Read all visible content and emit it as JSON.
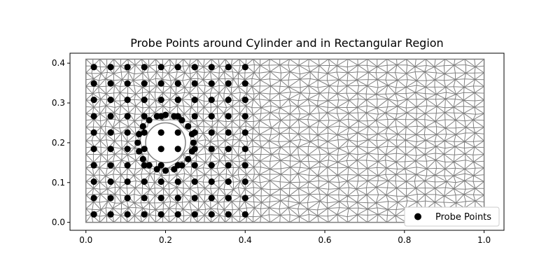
{
  "chart_data": {
    "type": "scatter",
    "title": "Probe Points around Cylinder and in Rectangular Region",
    "xlabel": "",
    "ylabel": "",
    "xlim": [
      -0.04,
      1.05
    ],
    "ylim": [
      -0.02,
      0.425
    ],
    "x_ticks": [
      0.0,
      0.2,
      0.4,
      0.6,
      0.8,
      1.0
    ],
    "x_tick_labels": [
      "0.0",
      "0.2",
      "0.4",
      "0.6",
      "0.8",
      "1.0"
    ],
    "y_ticks": [
      0.0,
      0.1,
      0.2,
      0.3,
      0.4
    ],
    "y_tick_labels": [
      "0.0",
      "0.1",
      "0.2",
      "0.3",
      "0.4"
    ],
    "grid": false,
    "legend": {
      "placement": "lower-right",
      "entries": [
        "Probe Points"
      ]
    },
    "mesh": {
      "domain": {
        "x": [
          0.0,
          1.0
        ],
        "y": [
          0.0,
          0.41
        ]
      },
      "cylinder": {
        "center": [
          0.2,
          0.2
        ],
        "radius": 0.05
      },
      "color": "#808080"
    },
    "series": [
      {
        "name": "Probe Points",
        "color": "#000000",
        "grid": {
          "x": [
            0.02,
            0.0622,
            0.1044,
            0.1467,
            0.1889,
            0.2311,
            0.2733,
            0.3156,
            0.3578,
            0.4
          ],
          "y": [
            0.02,
            0.0611,
            0.1022,
            0.1433,
            0.1844,
            0.2256,
            0.2667,
            0.3078,
            0.3489,
            0.39
          ]
        },
        "ring": {
          "center": [
            0.2,
            0.2
          ],
          "radius": 0.07,
          "count": 20,
          "start_angle_deg": 0
        }
      }
    ]
  }
}
